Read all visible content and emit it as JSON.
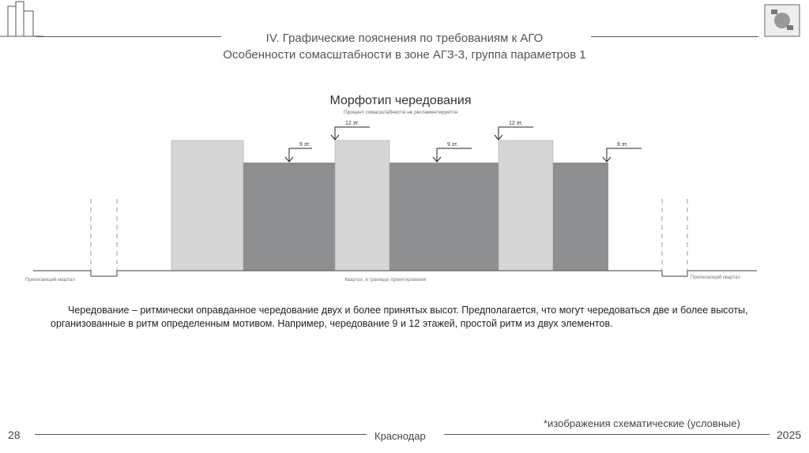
{
  "header": {
    "line1": "IV. Графические пояснения по требованиям к АГО",
    "line2": "Особенности сомасштабности в зоне АГЗ-3, группа параметров 1"
  },
  "diagram": {
    "title": "Морфотип чередования",
    "subtitle": "Процент сомасштабности не регламентируется",
    "label_12": "12 эт.",
    "label_9": "9 эт.",
    "left_label": "Прилегающий квартал",
    "center_label": "Квартал, в границах проектирования",
    "right_label": "Прилегающий квартал",
    "colors": {
      "tall": "#d6d6d6",
      "low": "#8e8f91"
    }
  },
  "description": "Чередование – ритмически оправданное чередование двух и более принятых высот. Предполагается, что могут чередоваться две и более высоты, организованные в ритм определенным мотивом. Например, чередование 9 и 12 этажей, простой ритм из двух элементов.",
  "footer": {
    "page": "28",
    "city": "Краснодар",
    "year": "2025",
    "note": "*изображения схематические (условные)"
  }
}
